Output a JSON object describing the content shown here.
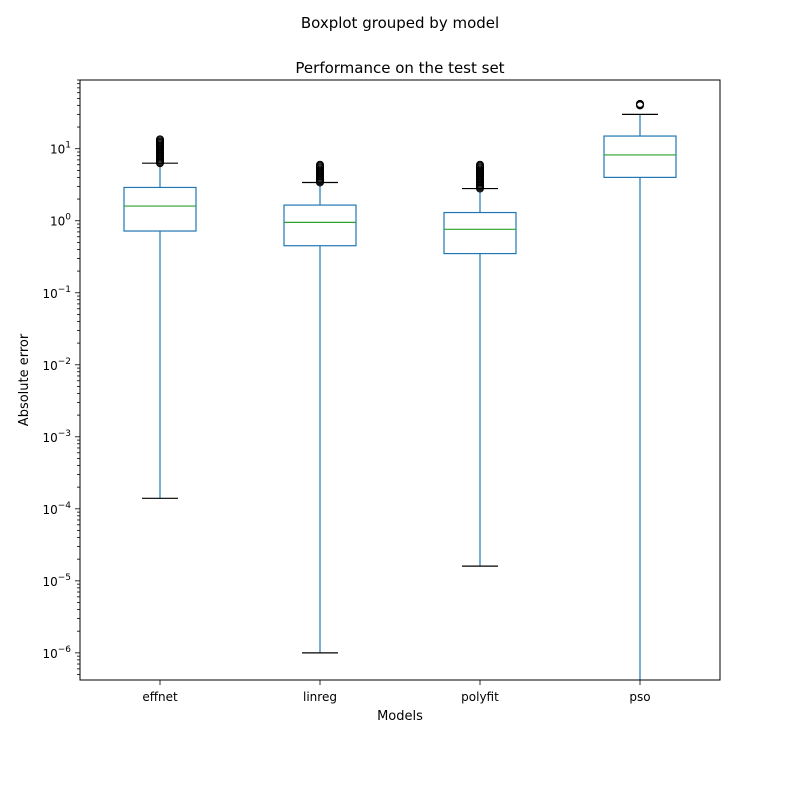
{
  "chart_data": {
    "type": "boxplot",
    "suptitle": "Boxplot grouped by model",
    "title": "Performance on the test set",
    "xlabel": "Models",
    "ylabel": "Absolute error",
    "yscale": "log",
    "ylim": [
      4.2e-07,
      90
    ],
    "grid": false,
    "categories": [
      "effnet",
      "linreg",
      "polyfit",
      "pso"
    ],
    "boxes": [
      {
        "name": "effnet",
        "whisker_low": 0.00014,
        "q1": 0.72,
        "median": 1.6,
        "q3": 2.9,
        "whisker_high": 6.3,
        "outliers_min": 6.3,
        "outliers_max": 13.5
      },
      {
        "name": "linreg",
        "whisker_low": 1e-06,
        "q1": 0.45,
        "median": 0.95,
        "q3": 1.65,
        "whisker_high": 3.4,
        "outliers_min": 3.4,
        "outliers_max": 6.0
      },
      {
        "name": "polyfit",
        "whisker_low": 1.6e-05,
        "q1": 0.35,
        "median": 0.76,
        "q3": 1.3,
        "whisker_high": 2.8,
        "outliers_min": 2.8,
        "outliers_max": 6.0
      },
      {
        "name": "pso",
        "whisker_low": 4.2e-07,
        "q1": 4.0,
        "median": 8.2,
        "q3": 15.0,
        "whisker_high": 30.0,
        "outliers_min": 40.0,
        "outliers_max": 42.0
      }
    ],
    "y_tick_labels": [
      {
        "value": 1e-06,
        "base": "10",
        "exp": "−6"
      },
      {
        "value": 1e-05,
        "base": "10",
        "exp": "−5"
      },
      {
        "value": 0.0001,
        "base": "10",
        "exp": "−4"
      },
      {
        "value": 0.001,
        "base": "10",
        "exp": "−3"
      },
      {
        "value": 0.01,
        "base": "10",
        "exp": "−2"
      },
      {
        "value": 0.1,
        "base": "10",
        "exp": "−1"
      },
      {
        "value": 1,
        "base": "10",
        "exp": "0"
      },
      {
        "value": 10,
        "base": "10",
        "exp": "1"
      }
    ],
    "colors": {
      "box": "#1f77b4",
      "median": "#2ca02c",
      "cap": "#000000",
      "flier": "#000000",
      "axes": "#000000"
    }
  }
}
